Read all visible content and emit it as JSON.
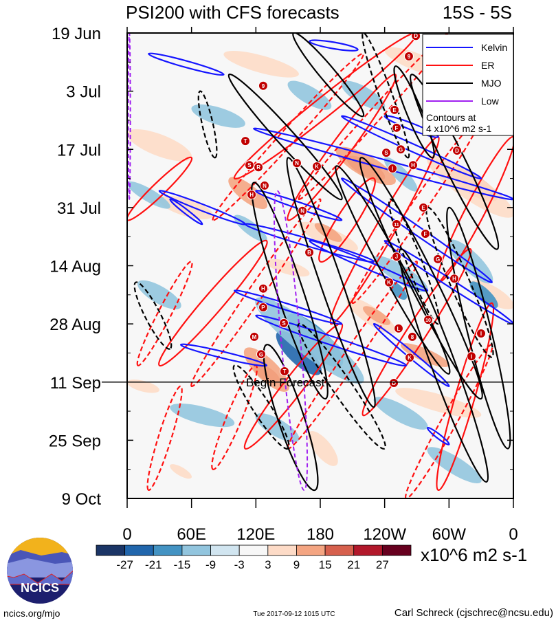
{
  "chart_data": {
    "type": "heatmap",
    "title": "PSI200 with CFS forecasts",
    "region": "15S - 5S",
    "forecast_label": "Begin Forecast",
    "forecast_start_day": 84,
    "x_ticks": [
      {
        "lon": 0,
        "label": "0"
      },
      {
        "lon": 60,
        "label": "60E"
      },
      {
        "lon": 120,
        "label": "120E"
      },
      {
        "lon": 180,
        "label": "180"
      },
      {
        "lon": 240,
        "label": "120W"
      },
      {
        "lon": 300,
        "label": "60W"
      },
      {
        "lon": 360,
        "label": "0"
      }
    ],
    "y_ticks": [
      {
        "day": 0,
        "label": "19 Jun"
      },
      {
        "day": 14,
        "label": "3 Jul"
      },
      {
        "day": 28,
        "label": "17 Jul"
      },
      {
        "day": 42,
        "label": "31 Jul"
      },
      {
        "day": 56,
        "label": "14 Aug"
      },
      {
        "day": 70,
        "label": "28 Aug"
      },
      {
        "day": 84,
        "label": "11 Sep"
      },
      {
        "day": 98,
        "label": "25 Sep"
      },
      {
        "day": 112,
        "label": "9 Oct"
      }
    ],
    "xlim": [
      0,
      360
    ],
    "ylim_days": [
      0,
      112
    ],
    "colorbar": {
      "levels": [
        "-27",
        "-21",
        "-15",
        "-9",
        "-3",
        "3",
        "9",
        "15",
        "21",
        "27"
      ],
      "colors": [
        "#1b3566",
        "#2166ac",
        "#4393c3",
        "#92c5de",
        "#d1e5f0",
        "#f7f7f7",
        "#fddbc7",
        "#f4a582",
        "#d6604d",
        "#b2182b",
        "#67001f"
      ],
      "units": "x10^6 m2 s-1"
    },
    "legend": {
      "items": [
        {
          "name": "Kelvin",
          "color": "#1515ff"
        },
        {
          "name": "ER",
          "color": "#ff1010"
        },
        {
          "name": "MJO",
          "color": "#000000"
        },
        {
          "name": "Low",
          "color": "#a020f0"
        }
      ],
      "note_line1": "Contours at",
      "note_line2": "4 x10^6 m2 s-1"
    },
    "shading": [
      [
        21,
        205,
        30,
        240,
        35,
        7
      ],
      [
        15,
        195,
        28,
        250,
        36,
        10
      ],
      [
        15,
        300,
        33,
        345,
        40,
        9
      ],
      [
        9,
        280,
        30,
        360,
        44,
        12
      ],
      [
        15,
        95,
        35,
        130,
        42,
        8
      ],
      [
        21,
        118,
        80,
        142,
        84,
        6
      ],
      [
        15,
        110,
        76,
        150,
        86,
        10
      ],
      [
        9,
        0,
        24,
        60,
        30,
        10
      ],
      [
        9,
        30,
        40,
        80,
        44,
        8
      ],
      [
        15,
        255,
        75,
        300,
        80,
        6
      ],
      [
        9,
        160,
        46,
        215,
        52,
        8
      ],
      [
        15,
        175,
        46,
        200,
        50,
        5
      ],
      [
        9,
        205,
        64,
        250,
        72,
        8
      ],
      [
        15,
        220,
        66,
        245,
        70,
        5
      ],
      [
        9,
        250,
        86,
        330,
        92,
        8
      ],
      [
        9,
        170,
        96,
        195,
        104,
        8
      ],
      [
        9,
        90,
        5,
        160,
        10,
        8
      ],
      [
        9,
        240,
        4,
        300,
        10,
        8
      ],
      [
        9,
        320,
        60,
        360,
        66,
        8
      ],
      [
        9,
        40,
        104,
        60,
        107,
        4
      ],
      [
        9,
        0,
        84,
        30,
        86,
        5
      ],
      [
        9,
        130,
        55,
        170,
        58,
        6
      ],
      [
        -21,
        140,
        72,
        180,
        82,
        10
      ],
      [
        -15,
        150,
        68,
        200,
        80,
        12
      ],
      [
        -9,
        120,
        64,
        220,
        84,
        14
      ],
      [
        -9,
        10,
        60,
        50,
        66,
        8
      ],
      [
        -9,
        60,
        18,
        110,
        22,
        8
      ],
      [
        -15,
        245,
        60,
        260,
        64,
        5
      ],
      [
        -9,
        230,
        54,
        280,
        62,
        8
      ],
      [
        -9,
        300,
        50,
        340,
        60,
        9
      ],
      [
        -15,
        320,
        60,
        345,
        66,
        6
      ],
      [
        -9,
        150,
        12,
        190,
        18,
        8
      ],
      [
        -9,
        200,
        12,
        240,
        18,
        8
      ],
      [
        -9,
        120,
        92,
        160,
        98,
        8
      ],
      [
        -9,
        40,
        90,
        100,
        94,
        8
      ],
      [
        -9,
        230,
        88,
        280,
        95,
        8
      ],
      [
        -9,
        240,
        30,
        270,
        38,
        6
      ],
      [
        -9,
        0,
        36,
        40,
        42,
        6
      ],
      [
        -9,
        280,
        100,
        330,
        108,
        8
      ],
      [
        -9,
        100,
        44,
        130,
        50,
        6
      ]
    ],
    "mjo": {
      "solid": [
        [
          118,
          36,
          185,
          88,
          12
        ],
        [
          150,
          30,
          230,
          90,
          10
        ],
        [
          195,
          32,
          300,
          82,
          10
        ],
        [
          218,
          30,
          330,
          88,
          12
        ],
        [
          265,
          10,
          345,
          52,
          10
        ],
        [
          300,
          42,
          355,
          100,
          11
        ],
        [
          250,
          8,
          285,
          30,
          7
        ],
        [
          95,
          10,
          200,
          40,
          8
        ],
        [
          155,
          0,
          220,
          20,
          7
        ],
        [
          130,
          75,
          175,
          110,
          12
        ],
        [
          255,
          52,
          335,
          108,
          11
        ]
      ],
      "dashed": [
        [
          8,
          60,
          40,
          76,
          7
        ],
        [
          160,
          70,
          240,
          100,
          9
        ],
        [
          100,
          80,
          150,
          100,
          8
        ],
        [
          220,
          0,
          262,
          30,
          6
        ],
        [
          280,
          42,
          340,
          78,
          9
        ],
        [
          68,
          14,
          82,
          30,
          5
        ],
        [
          245,
          40,
          290,
          70,
          7
        ]
      ]
    },
    "kelvin": [
      [
        20,
        5,
        90,
        10,
        3
      ],
      [
        170,
        2,
        215,
        4,
        3
      ],
      [
        118,
        23,
        360,
        40,
        4
      ],
      [
        200,
        20,
        330,
        35,
        3.5
      ],
      [
        30,
        38,
        110,
        46,
        3
      ],
      [
        120,
        38,
        200,
        45,
        3
      ],
      [
        170,
        50,
        280,
        62,
        3.5
      ],
      [
        110,
        46,
        230,
        55,
        3.5
      ],
      [
        200,
        35,
        340,
        60,
        4
      ],
      [
        240,
        50,
        360,
        70,
        3.5
      ],
      [
        100,
        62,
        200,
        70,
        3
      ],
      [
        120,
        68,
        260,
        80,
        4
      ],
      [
        50,
        75,
        130,
        80,
        3
      ],
      [
        230,
        70,
        300,
        85,
        3
      ],
      [
        280,
        95,
        300,
        99,
        2
      ],
      [
        240,
        20,
        290,
        25,
        3
      ],
      [
        40,
        40,
        70,
        46,
        2
      ]
    ],
    "er": {
      "solid": [
        [
          270,
          0,
          100,
          35,
          9
        ],
        [
          250,
          10,
          150,
          45,
          9
        ],
        [
          290,
          25,
          190,
          70,
          9
        ],
        [
          130,
          50,
          30,
          80,
          9
        ],
        [
          320,
          52,
          220,
          92,
          9
        ],
        [
          230,
          35,
          180,
          55,
          9
        ],
        [
          340,
          65,
          290,
          110,
          9
        ],
        [
          200,
          70,
          110,
          100,
          9
        ],
        [
          360,
          25,
          290,
          60,
          9
        ],
        [
          60,
          30,
          0,
          45,
          6
        ]
      ],
      "dashed": [
        [
          300,
          0,
          160,
          40,
          6
        ],
        [
          220,
          5,
          80,
          45,
          7
        ],
        [
          330,
          20,
          210,
          65,
          7
        ],
        [
          180,
          40,
          60,
          85,
          7
        ],
        [
          270,
          55,
          150,
          100,
          7
        ],
        [
          340,
          75,
          260,
          112,
          7
        ],
        [
          120,
          80,
          80,
          105,
          7
        ],
        [
          60,
          55,
          10,
          80,
          6
        ],
        [
          50,
          85,
          20,
          110,
          6
        ]
      ]
    },
    "low": [
      [
        2,
        0,
        2,
        40,
        1
      ],
      [
        140,
        38,
        165,
        110,
        9
      ]
    ],
    "storms": [
      {
        "label": "T",
        "lon": 110.2,
        "day": 26.0
      },
      {
        "label": "S",
        "lon": 114.0,
        "day": 31.8
      },
      {
        "label": "R",
        "lon": 122.4,
        "day": 32.3
      },
      {
        "label": "N",
        "lon": 158.2,
        "day": 31.3
      },
      {
        "label": "K",
        "lon": 176.8,
        "day": 32.1
      },
      {
        "label": "N",
        "lon": 128.1,
        "day": 36.7
      },
      {
        "label": "H",
        "lon": 116.0,
        "day": 38.9
      },
      {
        "label": "N",
        "lon": 163.4,
        "day": 42.8
      },
      {
        "label": "B",
        "lon": 169.8,
        "day": 52.8
      },
      {
        "label": "H",
        "lon": 126.8,
        "day": 61.5
      },
      {
        "label": "P",
        "lon": 126.8,
        "day": 66.0
      },
      {
        "label": "S",
        "lon": 146.1,
        "day": 69.8
      },
      {
        "label": "M",
        "lon": 118.5,
        "day": 73.1
      },
      {
        "label": "G",
        "lon": 124.9,
        "day": 77.3
      },
      {
        "label": "T",
        "lon": 146.7,
        "day": 81.4
      },
      {
        "label": "9",
        "lon": 126.8,
        "day": 12.7
      },
      {
        "label": "D",
        "lon": 269.1,
        "day": 0.7
      },
      {
        "label": "9",
        "lon": 262.6,
        "day": 5.6
      },
      {
        "label": "E",
        "lon": 249.2,
        "day": 18.5
      },
      {
        "label": "F",
        "lon": 251.1,
        "day": 22.8
      },
      {
        "label": "G",
        "lon": 255.0,
        "day": 28.0
      },
      {
        "label": "S",
        "lon": 241.5,
        "day": 28.8
      },
      {
        "label": "I",
        "lon": 247.3,
        "day": 32.6
      },
      {
        "label": "H",
        "lon": 266.5,
        "day": 31.8
      },
      {
        "label": "D",
        "lon": 307.5,
        "day": 28.3
      },
      {
        "label": "E",
        "lon": 276.1,
        "day": 42.0
      },
      {
        "label": "11",
        "lon": 251.1,
        "day": 46.0
      },
      {
        "label": "F",
        "lon": 278.0,
        "day": 48.3
      },
      {
        "label": "J",
        "lon": 251.1,
        "day": 53.8
      },
      {
        "label": "G",
        "lon": 289.6,
        "day": 54.4
      },
      {
        "label": "K",
        "lon": 244.1,
        "day": 60.0
      },
      {
        "label": "H",
        "lon": 304.9,
        "day": 59.1
      },
      {
        "label": "10",
        "lon": 280.6,
        "day": 69.0
      },
      {
        "label": "L",
        "lon": 253.0,
        "day": 71.1
      },
      {
        "label": "8",
        "lon": 265.8,
        "day": 73.1
      },
      {
        "label": "I",
        "lon": 329.9,
        "day": 72.3
      },
      {
        "label": "K",
        "lon": 263.3,
        "day": 78.1
      },
      {
        "label": "I",
        "lon": 320.9,
        "day": 77.8
      },
      {
        "label": "D",
        "lon": 248.6,
        "day": 84.2
      }
    ]
  },
  "footer": {
    "logo_text": "NCICS",
    "website": "ncics.org/mjo",
    "timestamp": "Tue 2017-09-12 1015 UTC",
    "author": "Carl Schreck (cjschrec@ncsu.edu)"
  }
}
